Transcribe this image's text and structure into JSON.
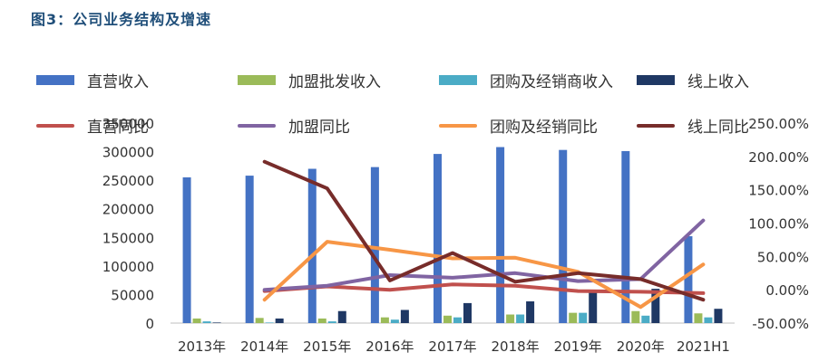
{
  "figure_title": "图3：公司业务结构及增速",
  "colors": {
    "direct": "#4472c4",
    "franchise": "#9bbb59",
    "group": "#4bacc6",
    "online": "#1f3864",
    "direct_yoy": "#c0504d",
    "franchise_yoy": "#8064a2",
    "group_yoy": "#f79646",
    "online_yoy": "#772c2a",
    "title": "#1f4e79"
  },
  "legend": {
    "direct": "直营收入",
    "franchise": "加盟批发收入",
    "group": "团购及经销商收入",
    "online": "线上收入",
    "direct_yoy": "直营同比",
    "franchise_yoy": "加盟同比",
    "group_yoy": "团购及经销同比",
    "online_yoy": "线上同比"
  },
  "chart_data": {
    "type": "bar",
    "categories": [
      "2013年",
      "2014年",
      "2015年",
      "2016年",
      "2017年",
      "2018年",
      "2019年",
      "2020年",
      "2021H1"
    ],
    "left_axis": {
      "ticks": [
        "0",
        "50000",
        "100000",
        "150000",
        "200000",
        "250000",
        "300000",
        "350000"
      ],
      "ylim": [
        0,
        350000
      ]
    },
    "right_axis": {
      "ticks": [
        "-50.00%",
        "0.00%",
        "50.00%",
        "100.00%",
        "150.00%",
        "200.00%",
        "250.00%"
      ],
      "ylim": [
        -0.5,
        2.5
      ]
    },
    "bar_series": [
      {
        "name": "直营收入",
        "key": "direct",
        "values": [
          255000,
          258000,
          270000,
          273000,
          296000,
          308000,
          303000,
          301000,
          152000
        ]
      },
      {
        "name": "加盟批发收入",
        "key": "franchise",
        "values": [
          8000,
          9000,
          8000,
          10000,
          13000,
          15000,
          18000,
          21000,
          17000
        ]
      },
      {
        "name": "团购及经销商收入",
        "key": "group",
        "values": [
          3000,
          1000,
          3000,
          6000,
          10000,
          15000,
          18000,
          13000,
          10000
        ]
      },
      {
        "name": "线上收入",
        "key": "online",
        "values": [
          1000,
          8000,
          21000,
          23000,
          35000,
          38000,
          55000,
          60000,
          25000
        ]
      }
    ],
    "line_series": [
      {
        "name": "直营同比",
        "key": "direct_yoy",
        "values": [
          null,
          -0.02,
          0.05,
          0.0,
          0.08,
          0.06,
          -0.02,
          -0.03,
          -0.05
        ]
      },
      {
        "name": "加盟同比",
        "key": "franchise_yoy",
        "values": [
          null,
          0.0,
          0.06,
          0.22,
          0.18,
          0.25,
          0.13,
          0.16,
          1.04
        ]
      },
      {
        "name": "团购及经销同比",
        "key": "group_yoy",
        "values": [
          null,
          -0.15,
          0.72,
          0.6,
          0.47,
          0.48,
          0.27,
          -0.26,
          0.38
        ]
      },
      {
        "name": "线上同比",
        "key": "online_yoy",
        "values": [
          null,
          1.92,
          1.52,
          0.14,
          0.55,
          0.12,
          0.25,
          0.16,
          -0.15
        ]
      }
    ]
  }
}
